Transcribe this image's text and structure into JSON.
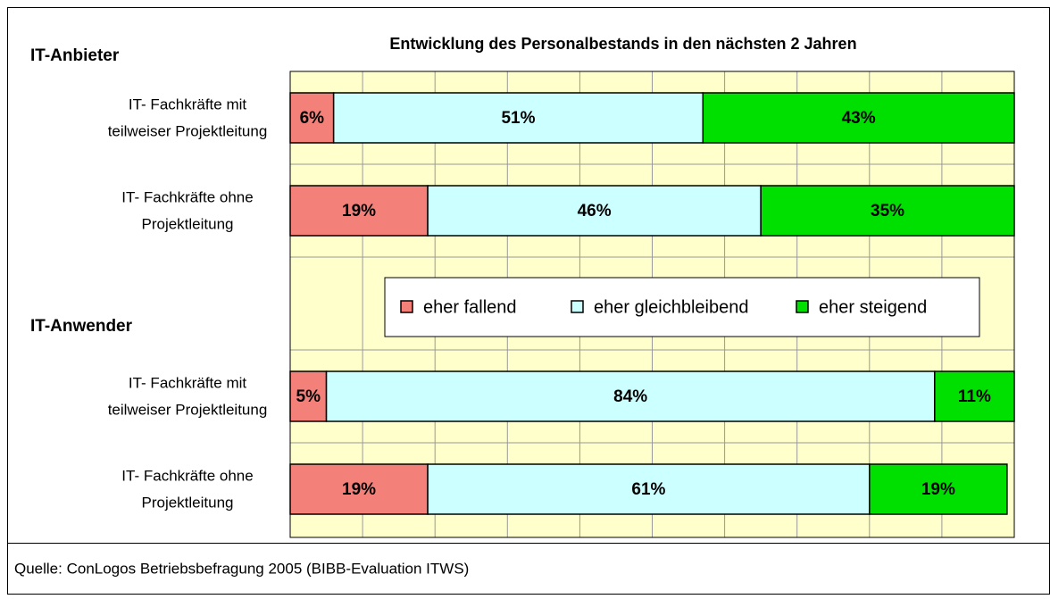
{
  "chart_data": {
    "type": "stacked_bar_horizontal",
    "title": "Entwicklung des Personalbestands in den nächsten 2 Jahren",
    "annotations": [
      "IT-Anbieter",
      "IT-Anwender"
    ],
    "source": "Quelle: ConLogos Betriebsbefragung 2005 (BIBB-Evaluation ITWS)",
    "categories": [
      [
        "IT- Fachkräfte mit",
        "teilweiser Projektleitung"
      ],
      [
        "IT- Fachkräfte ohne",
        "Projektleitung"
      ],
      null,
      [
        "IT- Fachkräfte mit",
        "teilweiser Projektleitung"
      ],
      [
        "IT- Fachkräfte ohne",
        "Projektleitung"
      ]
    ],
    "series": [
      {
        "name": "eher fallend",
        "color": "#f4807a",
        "values": [
          6,
          19,
          null,
          5,
          19
        ],
        "value_labels": [
          "6%",
          "19%",
          null,
          "5%",
          "19%"
        ]
      },
      {
        "name": "eher gleichbleibend",
        "color": "#ccffff",
        "values": [
          51,
          46,
          null,
          84,
          61
        ],
        "value_labels": [
          "51%",
          "46%",
          null,
          "84%",
          "61%"
        ]
      },
      {
        "name": "eher steigend",
        "color": "#00e000",
        "values": [
          43,
          35,
          null,
          11,
          19
        ],
        "value_labels": [
          "43%",
          "35%",
          null,
          "11%",
          "19%"
        ]
      }
    ],
    "xlim": [
      0,
      100
    ],
    "xticks": [
      0,
      10,
      20,
      30,
      40,
      50,
      60,
      70,
      80,
      90,
      100
    ],
    "grid": true
  }
}
